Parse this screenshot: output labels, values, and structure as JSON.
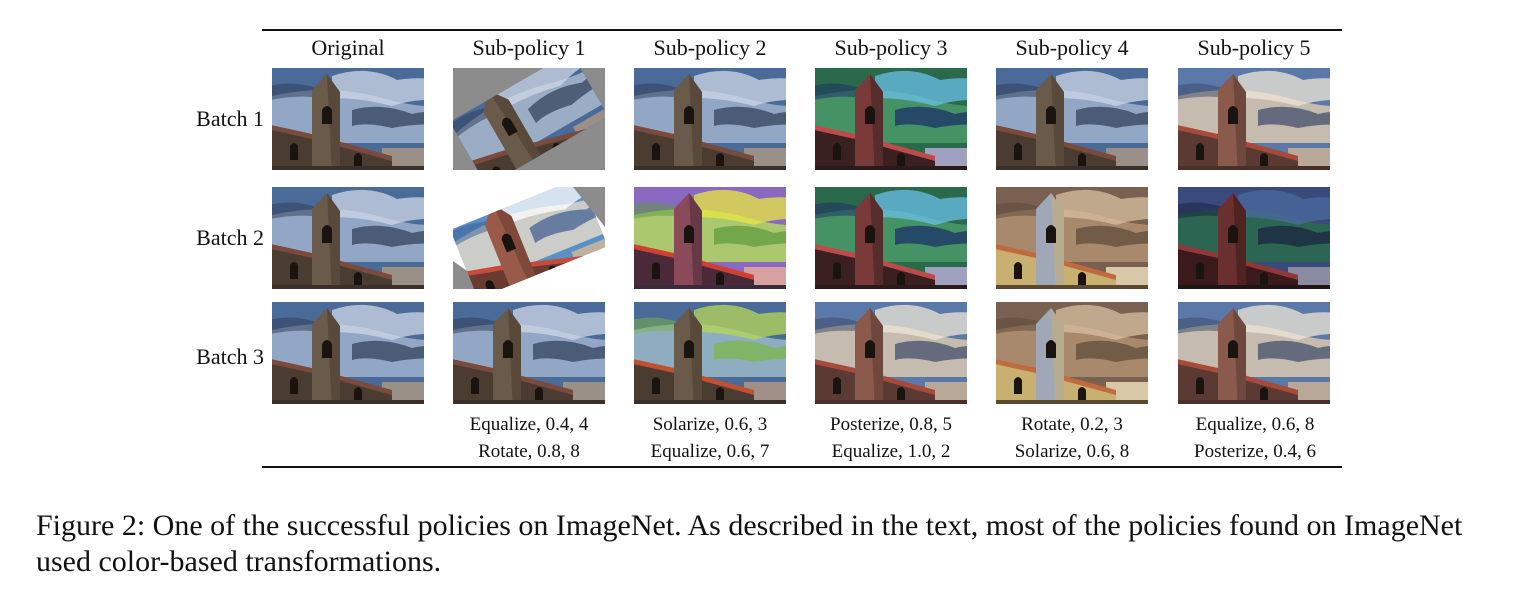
{
  "columns": [
    "Original",
    "Sub-policy 1",
    "Sub-policy 2",
    "Sub-policy 3",
    "Sub-policy 4",
    "Sub-policy 5"
  ],
  "rows": [
    "Batch 1",
    "Batch 2",
    "Batch 3"
  ],
  "sub_policy_ops": [
    {
      "op1": "Equalize, 0.4, 4",
      "op2": "Rotate, 0.8, 8"
    },
    {
      "op1": "Solarize, 0.6, 3",
      "op2": "Equalize, 0.6, 7"
    },
    {
      "op1": "Posterize, 0.8, 5",
      "op2": "Equalize, 1.0, 2"
    },
    {
      "op1": "Rotate, 0.2, 3",
      "op2": "Solarize, 0.6, 8"
    },
    {
      "op1": "Equalize, 0.6, 8",
      "op2": "Posterize, 0.4, 6"
    }
  ],
  "caption": "Figure 2: One of the successful policies on ImageNet. As described in the text, most of the policies found on ImageNet used color-based transformations."
}
